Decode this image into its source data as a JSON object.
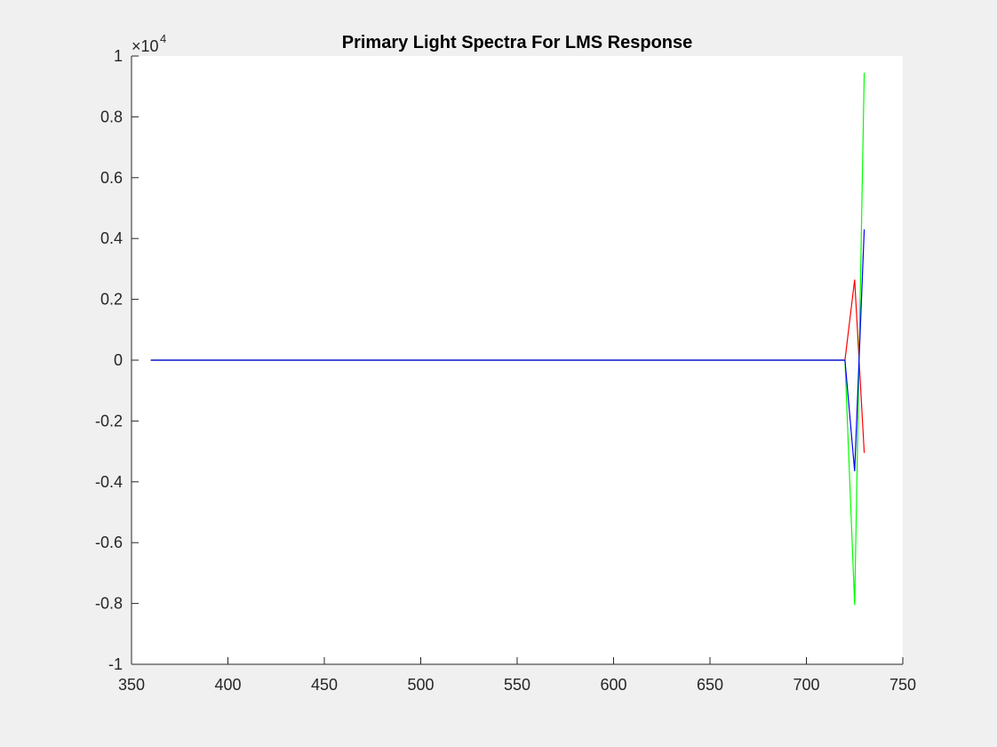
{
  "chart_data": {
    "type": "line",
    "title": "Primary Light Spectra For LMS Response",
    "xlabel": "",
    "ylabel": "",
    "xlim": [
      350,
      750
    ],
    "ylim": [
      -10000,
      10000
    ],
    "x_ticks": [
      350,
      400,
      450,
      500,
      550,
      600,
      650,
      700,
      750
    ],
    "x_tick_labels": [
      "350",
      "400",
      "450",
      "500",
      "550",
      "600",
      "650",
      "700",
      "750"
    ],
    "y_ticks": [
      -10000,
      -8000,
      -6000,
      -4000,
      -2000,
      0,
      2000,
      4000,
      6000,
      8000,
      10000
    ],
    "y_tick_labels": [
      "-1",
      "-0.8",
      "-0.6",
      "-0.4",
      "-0.2",
      "0",
      "0.2",
      "0.4",
      "0.6",
      "0.8",
      "1"
    ],
    "y_exponent": "4",
    "grid": false,
    "legend": "none",
    "series": [
      {
        "color": "#ff0000",
        "x": [
          360,
          720,
          725,
          730
        ],
        "y": [
          0,
          0,
          2650,
          -3050
        ]
      },
      {
        "color": "#00ff00",
        "x": [
          360,
          720,
          725,
          730
        ],
        "y": [
          0,
          0,
          -8050,
          9450
        ]
      },
      {
        "color": "#0000ff",
        "x": [
          360,
          720,
          725,
          730
        ],
        "y": [
          0,
          0,
          -3650,
          4300
        ]
      }
    ]
  }
}
